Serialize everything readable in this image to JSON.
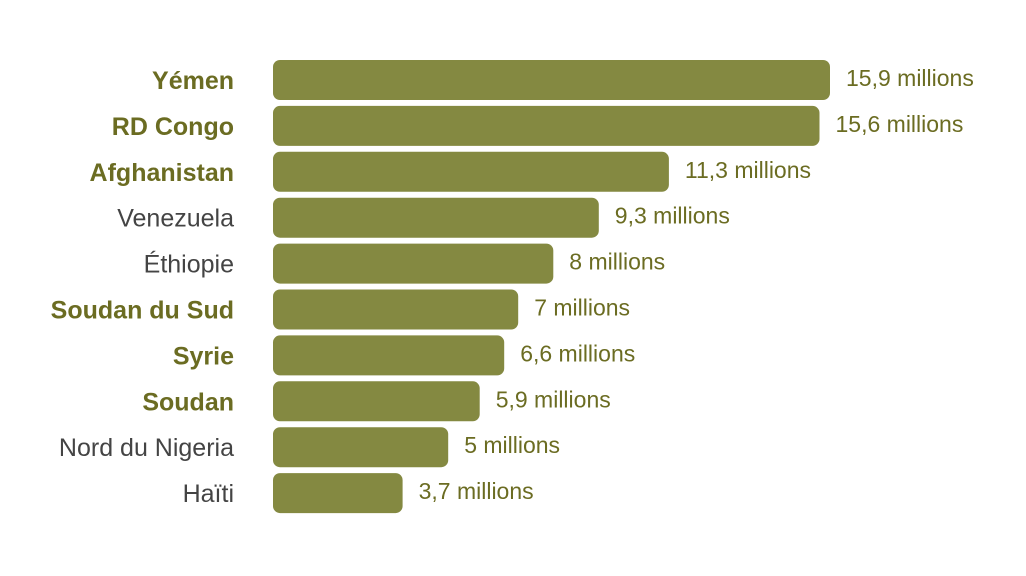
{
  "chart_data": {
    "type": "bar",
    "orientation": "horizontal",
    "bar_color": "#848941",
    "categories": [
      "Yémen",
      "RD Congo",
      "Afghanistan",
      "Venezuela",
      "Éthiopie",
      "Soudan du Sud",
      "Syrie",
      "Soudan",
      "Nord du Nigeria",
      "Haïti"
    ],
    "highlighted": [
      true,
      true,
      true,
      false,
      false,
      true,
      true,
      true,
      false,
      false
    ],
    "values": [
      15.9,
      15.6,
      11.3,
      9.3,
      8,
      7,
      6.6,
      5.9,
      5,
      3.7
    ],
    "value_labels": [
      "15,9 millions",
      "15,6 millions",
      "11,3 millions",
      "9,3 millions",
      "8 millions",
      "7 millions",
      "6,6 millions",
      "5,9 millions",
      "5 millions",
      "3,7 millions"
    ],
    "xlim": [
      0,
      15.9
    ],
    "grid": false
  }
}
